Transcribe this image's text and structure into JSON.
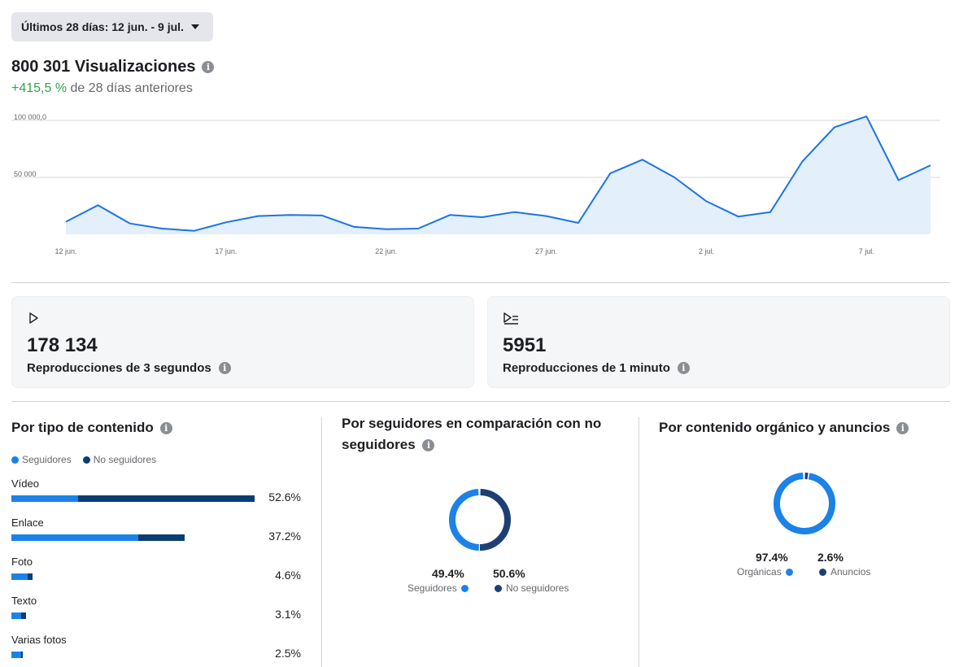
{
  "date_range": {
    "label": "Últimos 28 días: 12 jun. - 9 jul."
  },
  "views": {
    "headline": "800 301 Visualizaciones",
    "change_pct": "+415,5 %",
    "change_suffix": " de 28 días anteriores"
  },
  "chart_data": {
    "type": "area",
    "x": [
      "12 jun.",
      "13 jun.",
      "14 jun.",
      "15 jun.",
      "16 jun.",
      "17 jun.",
      "18 jun.",
      "19 jun.",
      "20 jun.",
      "21 jun.",
      "22 jun.",
      "23 jun.",
      "24 jun.",
      "25 jun.",
      "26 jun.",
      "27 jun.",
      "28 jun.",
      "29 jun.",
      "30 jun.",
      "1 jul.",
      "2 jul.",
      "3 jul.",
      "4 jul.",
      "5 jul.",
      "6 jul.",
      "7 jul.",
      "8 jul.",
      "9 jul."
    ],
    "values": [
      11000,
      25500,
      9500,
      5000,
      3000,
      10500,
      16000,
      17000,
      16500,
      6500,
      4500,
      5000,
      17000,
      15000,
      19500,
      16000,
      10000,
      53500,
      65500,
      50000,
      29000,
      15500,
      19500,
      64000,
      94000,
      103500,
      47500,
      60500
    ],
    "ytick_labels": [
      "100 000,0",
      "50 000"
    ],
    "ytick_values": [
      100000,
      50000
    ],
    "xtick_labels": [
      "12 jun.",
      "17 jun.",
      "22 jun.",
      "27 jun.",
      "2 jul.",
      "7 jul."
    ],
    "xtick_indices": [
      0,
      5,
      10,
      15,
      20,
      25
    ],
    "ylim": [
      0,
      110000
    ],
    "grid": true,
    "colors": {
      "line": "#1b74e4",
      "fill": "#e4effc",
      "grid": "#d8dadf"
    }
  },
  "metrics": {
    "plays3s": {
      "value": "178 134",
      "label": "Reproducciones de 3 segundos",
      "icon": "play-icon"
    },
    "plays1m": {
      "value": "5951",
      "label": "Reproducciones de 1 minuto",
      "icon": "play-list-icon"
    }
  },
  "content_type": {
    "title": "Por tipo de contenido",
    "legend": [
      "Seguidores",
      "No seguidores"
    ],
    "rows": [
      {
        "label": "Vídeo",
        "pct": "52.6%",
        "followers": 0.274,
        "non_followers": 1.0
      },
      {
        "label": "Enlace",
        "pct": "37.2%",
        "followers": 0.523,
        "non_followers": 0.712
      },
      {
        "label": "Foto",
        "pct": "4.6%",
        "followers": 0.067,
        "non_followers": 0.087
      },
      {
        "label": "Texto",
        "pct": "3.1%",
        "followers": 0.04,
        "non_followers": 0.06
      },
      {
        "label": "Varias fotos",
        "pct": "2.5%",
        "followers": 0.04,
        "non_followers": 0.047
      }
    ]
  },
  "followers_cmp": {
    "title": "Por seguidores en comparación con no seguidores",
    "a_value": "49.4%",
    "a_label": "Seguidores",
    "b_value": "50.6%",
    "b_label": "No seguidores",
    "a_fraction": 0.494
  },
  "organic_ads": {
    "title": "Por contenido orgánico y anuncios",
    "a_value": "97.4%",
    "a_label": "Orgánicas",
    "b_value": "2.6%",
    "b_label": "Anuncios",
    "a_fraction": 0.974
  },
  "colors": {
    "followers": "#1b82e8",
    "non_followers": "#0b3d73",
    "donut_dark": "#1d3f73",
    "accent_positive": "#31a24c"
  }
}
